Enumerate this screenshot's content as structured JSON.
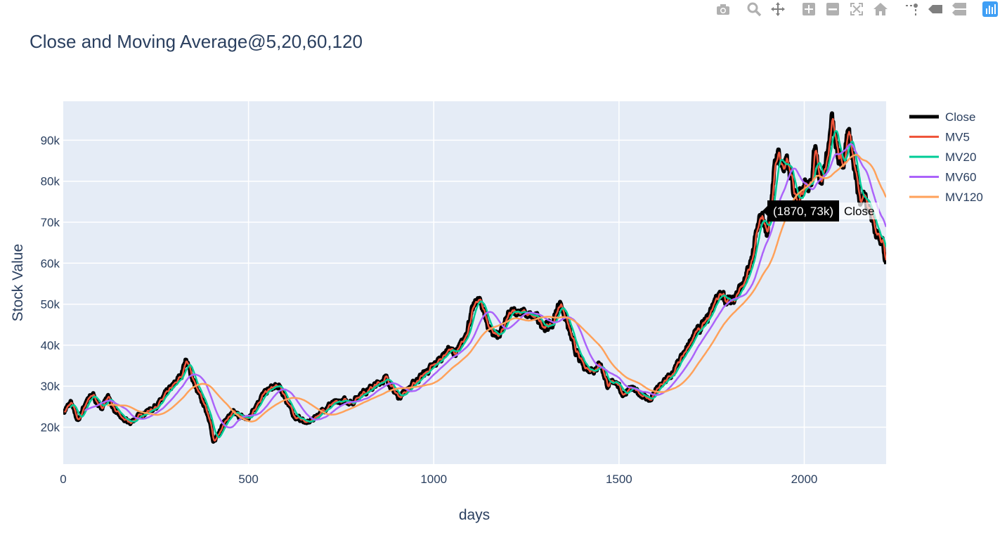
{
  "modebar": {
    "buttons": [
      {
        "name": "camera-icon",
        "label": "Download plot as a png"
      },
      {
        "name": "zoom-icon",
        "label": "Zoom"
      },
      {
        "name": "pan-icon",
        "label": "Pan"
      },
      {
        "name": "zoom-in-icon",
        "label": "Zoom in"
      },
      {
        "name": "zoom-out-icon",
        "label": "Zoom out"
      },
      {
        "name": "autoscale-icon",
        "label": "Autoscale"
      },
      {
        "name": "home-icon",
        "label": "Reset axes"
      },
      {
        "name": "spike-lines-icon",
        "label": "Toggle Spike Lines"
      },
      {
        "name": "hover-closest-icon",
        "label": "Show closest data on hover"
      },
      {
        "name": "hover-compare-icon",
        "label": "Compare data on hover"
      },
      {
        "name": "plotly-logo-icon",
        "label": "Produced with Plotly"
      }
    ],
    "icon_color": "#b0b0b0",
    "active_color": "#7f7f7f",
    "logo_color": "#3f9ff5"
  },
  "chart_data": {
    "type": "line",
    "title": "Close and Moving Average@5,20,60,120",
    "xlabel": "days",
    "ylabel": "Stock Value",
    "xlim": [
      0,
      2221
    ],
    "ylim": [
      11000,
      99500
    ],
    "x_ticks": [
      0,
      500,
      1000,
      1500,
      2000
    ],
    "x_tick_labels": [
      "0",
      "500",
      "1000",
      "1500",
      "2000"
    ],
    "y_ticks": [
      20000,
      30000,
      40000,
      50000,
      60000,
      70000,
      80000,
      90000
    ],
    "y_tick_labels": [
      "20k",
      "30k",
      "40k",
      "50k",
      "60k",
      "70k",
      "80k",
      "90k"
    ],
    "grid": true,
    "plot_bgcolor": "#e5ecf6",
    "legend_position": "right",
    "anchors": [
      [
        0,
        23500
      ],
      [
        20,
        26000
      ],
      [
        40,
        21500
      ],
      [
        60,
        26000
      ],
      [
        80,
        28000
      ],
      [
        100,
        24500
      ],
      [
        120,
        27500
      ],
      [
        140,
        24000
      ],
      [
        160,
        22000
      ],
      [
        180,
        21000
      ],
      [
        200,
        22500
      ],
      [
        220,
        23500
      ],
      [
        240,
        24500
      ],
      [
        260,
        26000
      ],
      [
        280,
        28500
      ],
      [
        300,
        30500
      ],
      [
        320,
        33000
      ],
      [
        330,
        36500
      ],
      [
        345,
        33000
      ],
      [
        360,
        29000
      ],
      [
        380,
        25500
      ],
      [
        395,
        22000
      ],
      [
        405,
        16000
      ],
      [
        420,
        19000
      ],
      [
        440,
        22000
      ],
      [
        460,
        23500
      ],
      [
        480,
        22500
      ],
      [
        500,
        22000
      ],
      [
        520,
        25500
      ],
      [
        540,
        28000
      ],
      [
        560,
        29500
      ],
      [
        580,
        30000
      ],
      [
        595,
        28000
      ],
      [
        610,
        25000
      ],
      [
        625,
        22500
      ],
      [
        640,
        22000
      ],
      [
        660,
        21000
      ],
      [
        680,
        22500
      ],
      [
        700,
        24000
      ],
      [
        720,
        25500
      ],
      [
        740,
        26000
      ],
      [
        760,
        26500
      ],
      [
        780,
        26000
      ],
      [
        800,
        28000
      ],
      [
        820,
        29000
      ],
      [
        840,
        30000
      ],
      [
        860,
        31500
      ],
      [
        875,
        32000
      ],
      [
        890,
        29000
      ],
      [
        905,
        27500
      ],
      [
        920,
        28500
      ],
      [
        940,
        30000
      ],
      [
        960,
        32000
      ],
      [
        980,
        33500
      ],
      [
        1000,
        35000
      ],
      [
        1020,
        37000
      ],
      [
        1040,
        39000
      ],
      [
        1060,
        38000
      ],
      [
        1080,
        41000
      ],
      [
        1100,
        47000
      ],
      [
        1115,
        51000
      ],
      [
        1130,
        50000
      ],
      [
        1145,
        45000
      ],
      [
        1160,
        43000
      ],
      [
        1180,
        42500
      ],
      [
        1200,
        47000
      ],
      [
        1220,
        48500
      ],
      [
        1240,
        48000
      ],
      [
        1260,
        47000
      ],
      [
        1280,
        46500
      ],
      [
        1300,
        44500
      ],
      [
        1320,
        45000
      ],
      [
        1340,
        50500
      ],
      [
        1355,
        47000
      ],
      [
        1370,
        42000
      ],
      [
        1390,
        37000
      ],
      [
        1410,
        34500
      ],
      [
        1430,
        34000
      ],
      [
        1450,
        35500
      ],
      [
        1470,
        30000
      ],
      [
        1490,
        31500
      ],
      [
        1510,
        28000
      ],
      [
        1530,
        29500
      ],
      [
        1550,
        28500
      ],
      [
        1570,
        27500
      ],
      [
        1585,
        26500
      ],
      [
        1600,
        29000
      ],
      [
        1620,
        31000
      ],
      [
        1640,
        32500
      ],
      [
        1660,
        35500
      ],
      [
        1680,
        38500
      ],
      [
        1700,
        42500
      ],
      [
        1720,
        44000
      ],
      [
        1740,
        46500
      ],
      [
        1760,
        51500
      ],
      [
        1780,
        52000
      ],
      [
        1800,
        50500
      ],
      [
        1820,
        53000
      ],
      [
        1840,
        55500
      ],
      [
        1855,
        59500
      ],
      [
        1870,
        66500
      ],
      [
        1885,
        72000
      ],
      [
        1900,
        67000
      ],
      [
        1915,
        79000
      ],
      [
        1928,
        87500
      ],
      [
        1940,
        83500
      ],
      [
        1955,
        84000
      ],
      [
        1970,
        78000
      ],
      [
        1985,
        76000
      ],
      [
        2000,
        80000
      ],
      [
        2015,
        78000
      ],
      [
        2030,
        88000
      ],
      [
        2045,
        80000
      ],
      [
        2060,
        85000
      ],
      [
        2075,
        94500
      ],
      [
        2090,
        86000
      ],
      [
        2105,
        84500
      ],
      [
        2120,
        91000
      ],
      [
        2135,
        85000
      ],
      [
        2150,
        75000
      ],
      [
        2165,
        77000
      ],
      [
        2180,
        72000
      ],
      [
        2195,
        67000
      ],
      [
        2210,
        66500
      ],
      [
        2221,
        59000
      ]
    ],
    "series": [
      {
        "name": "Close",
        "window": 1,
        "color": "#000000",
        "width": 6
      },
      {
        "name": "MV5",
        "window": 5,
        "color": "#EF553B",
        "width": 2.5
      },
      {
        "name": "MV20",
        "window": 20,
        "color": "#00CC96",
        "width": 2.5
      },
      {
        "name": "MV60",
        "window": 60,
        "color": "#AB63FA",
        "width": 2.5
      },
      {
        "name": "MV120",
        "window": 120,
        "color": "#FFA15A",
        "width": 2.5
      }
    ],
    "hover": {
      "text": "(1870, 73k)",
      "series": "Close",
      "x": 1870,
      "y": 73000,
      "bgcolor": "#000000",
      "font_color": "#ffffff"
    }
  }
}
